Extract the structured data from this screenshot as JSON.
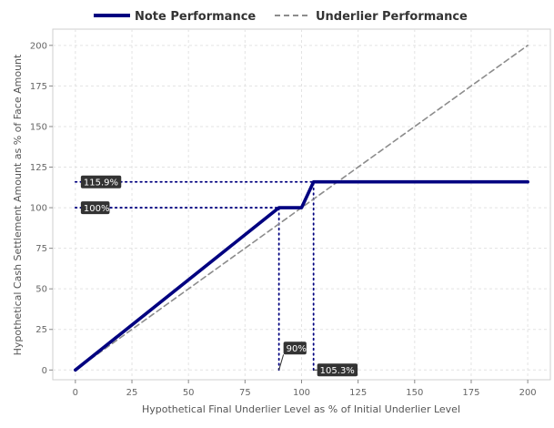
{
  "chart_data": {
    "type": "line",
    "title": "",
    "xlabel": "Hypothetical Final Underlier Level as % of Initial Underlier Level",
    "ylabel": "Hypothetical Cash Settlement Amount as % of Face Amount",
    "xlim": [
      -10,
      210
    ],
    "ylim": [
      -6,
      210
    ],
    "x_ticks": [
      0,
      25,
      50,
      75,
      100,
      125,
      150,
      175,
      200
    ],
    "y_ticks": [
      0,
      25,
      50,
      75,
      100,
      125,
      150,
      175,
      200
    ],
    "grid": true,
    "legend_position": "top",
    "series": [
      {
        "name": "Note Performance",
        "color": "#000080",
        "style": "solid",
        "x": [
          0,
          90,
          100,
          105.3,
          200
        ],
        "y": [
          0,
          100,
          100,
          115.9,
          115.9
        ]
      },
      {
        "name": "Underlier Performance",
        "color": "#8c8c8c",
        "style": "dashed",
        "x": [
          0,
          200
        ],
        "y": [
          0,
          200
        ]
      }
    ],
    "reference_lines": [
      {
        "orientation": "horizontal",
        "value": 115.9,
        "from": 0,
        "to": 105.3
      },
      {
        "orientation": "horizontal",
        "value": 100,
        "from": 0,
        "to": 90
      },
      {
        "orientation": "vertical",
        "value": 90,
        "from": 0,
        "to": 100
      },
      {
        "orientation": "vertical",
        "value": 105.3,
        "from": 0,
        "to": 115.9
      }
    ],
    "annotations": [
      {
        "text": "115.9%",
        "axis": "y",
        "value": 115.9
      },
      {
        "text": "100%",
        "axis": "y",
        "value": 100
      },
      {
        "text": "90%",
        "axis": "x",
        "value": 90
      },
      {
        "text": "105.3%",
        "axis": "x",
        "value": 105.3
      }
    ]
  }
}
